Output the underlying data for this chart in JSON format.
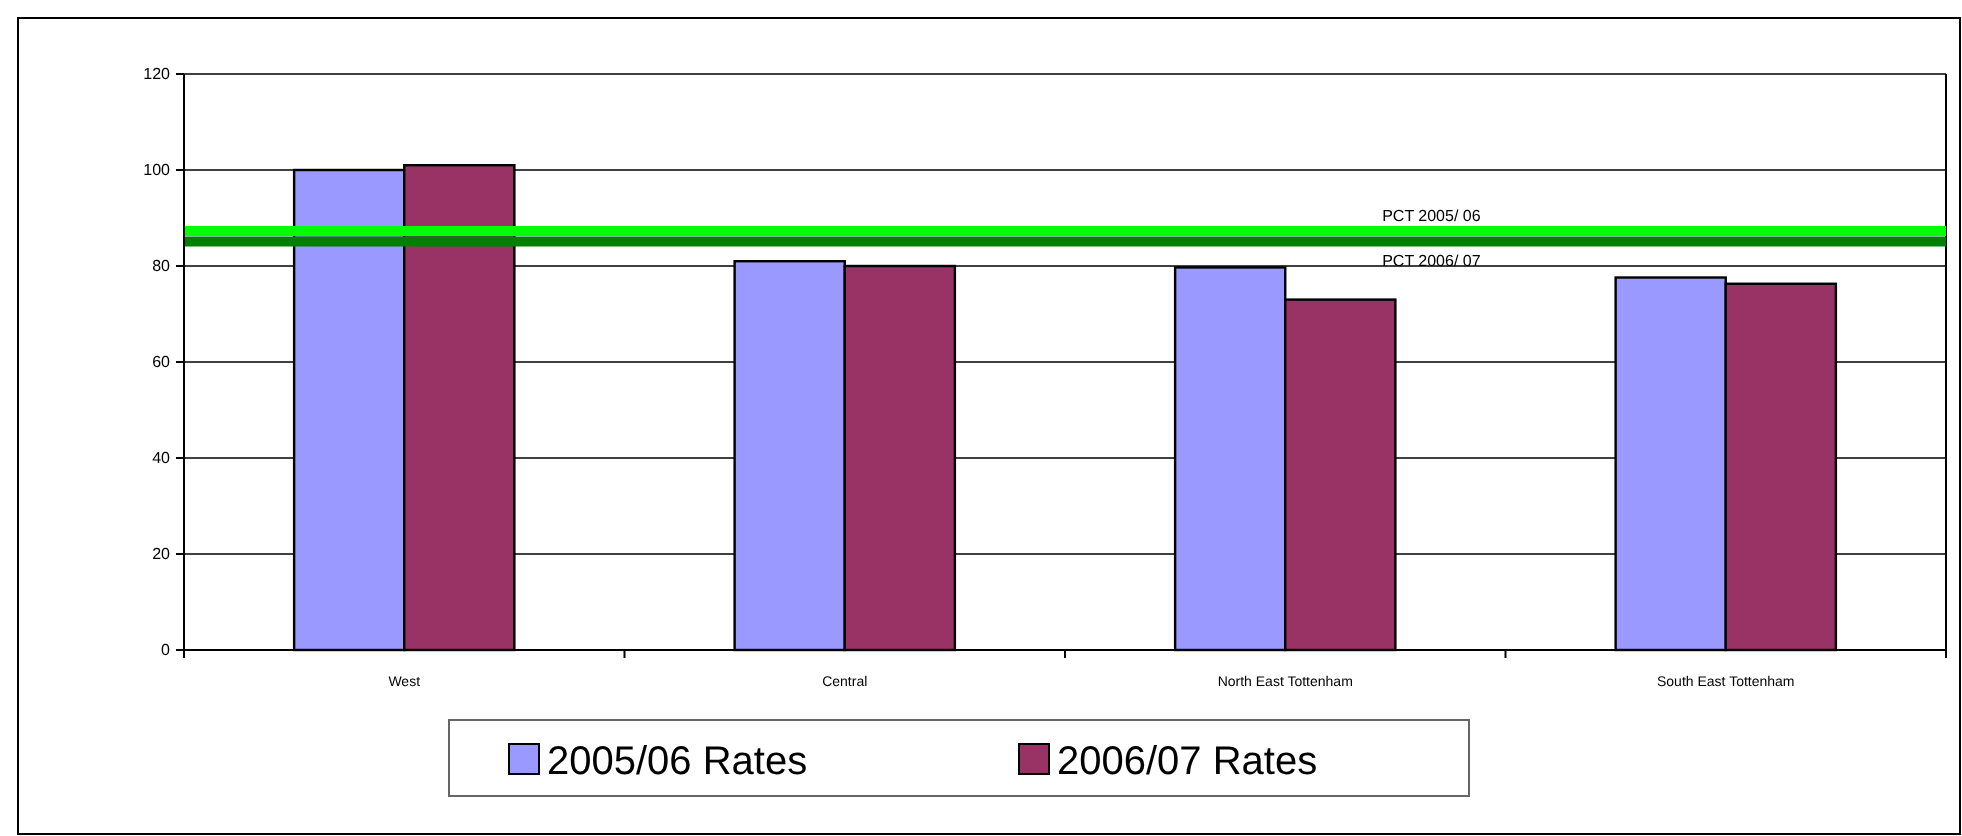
{
  "chart_data": {
    "type": "bar",
    "categories": [
      "West",
      "Central",
      "North East Tottenham",
      "South East Tottenham"
    ],
    "series": [
      {
        "name": "2005/06 Rates",
        "color": "#9999ff",
        "values": [
          100,
          81,
          79.7,
          77.6
        ]
      },
      {
        "name": "2006/07 Rates",
        "color": "#993366",
        "values": [
          101,
          80,
          73,
          76.3
        ]
      }
    ],
    "ylim": [
      0,
      120
    ],
    "yticks": [
      0,
      20,
      40,
      60,
      80,
      100,
      120
    ],
    "grid": "y",
    "legend": "bottom",
    "ref_lines": [
      {
        "axis": "y",
        "value": 87.3,
        "label": "PCT 2005/ 06",
        "color": "#00ff00"
      },
      {
        "axis": "y",
        "value": 85.1,
        "label": "PCT 2006/ 07",
        "color": "#008000"
      }
    ]
  }
}
